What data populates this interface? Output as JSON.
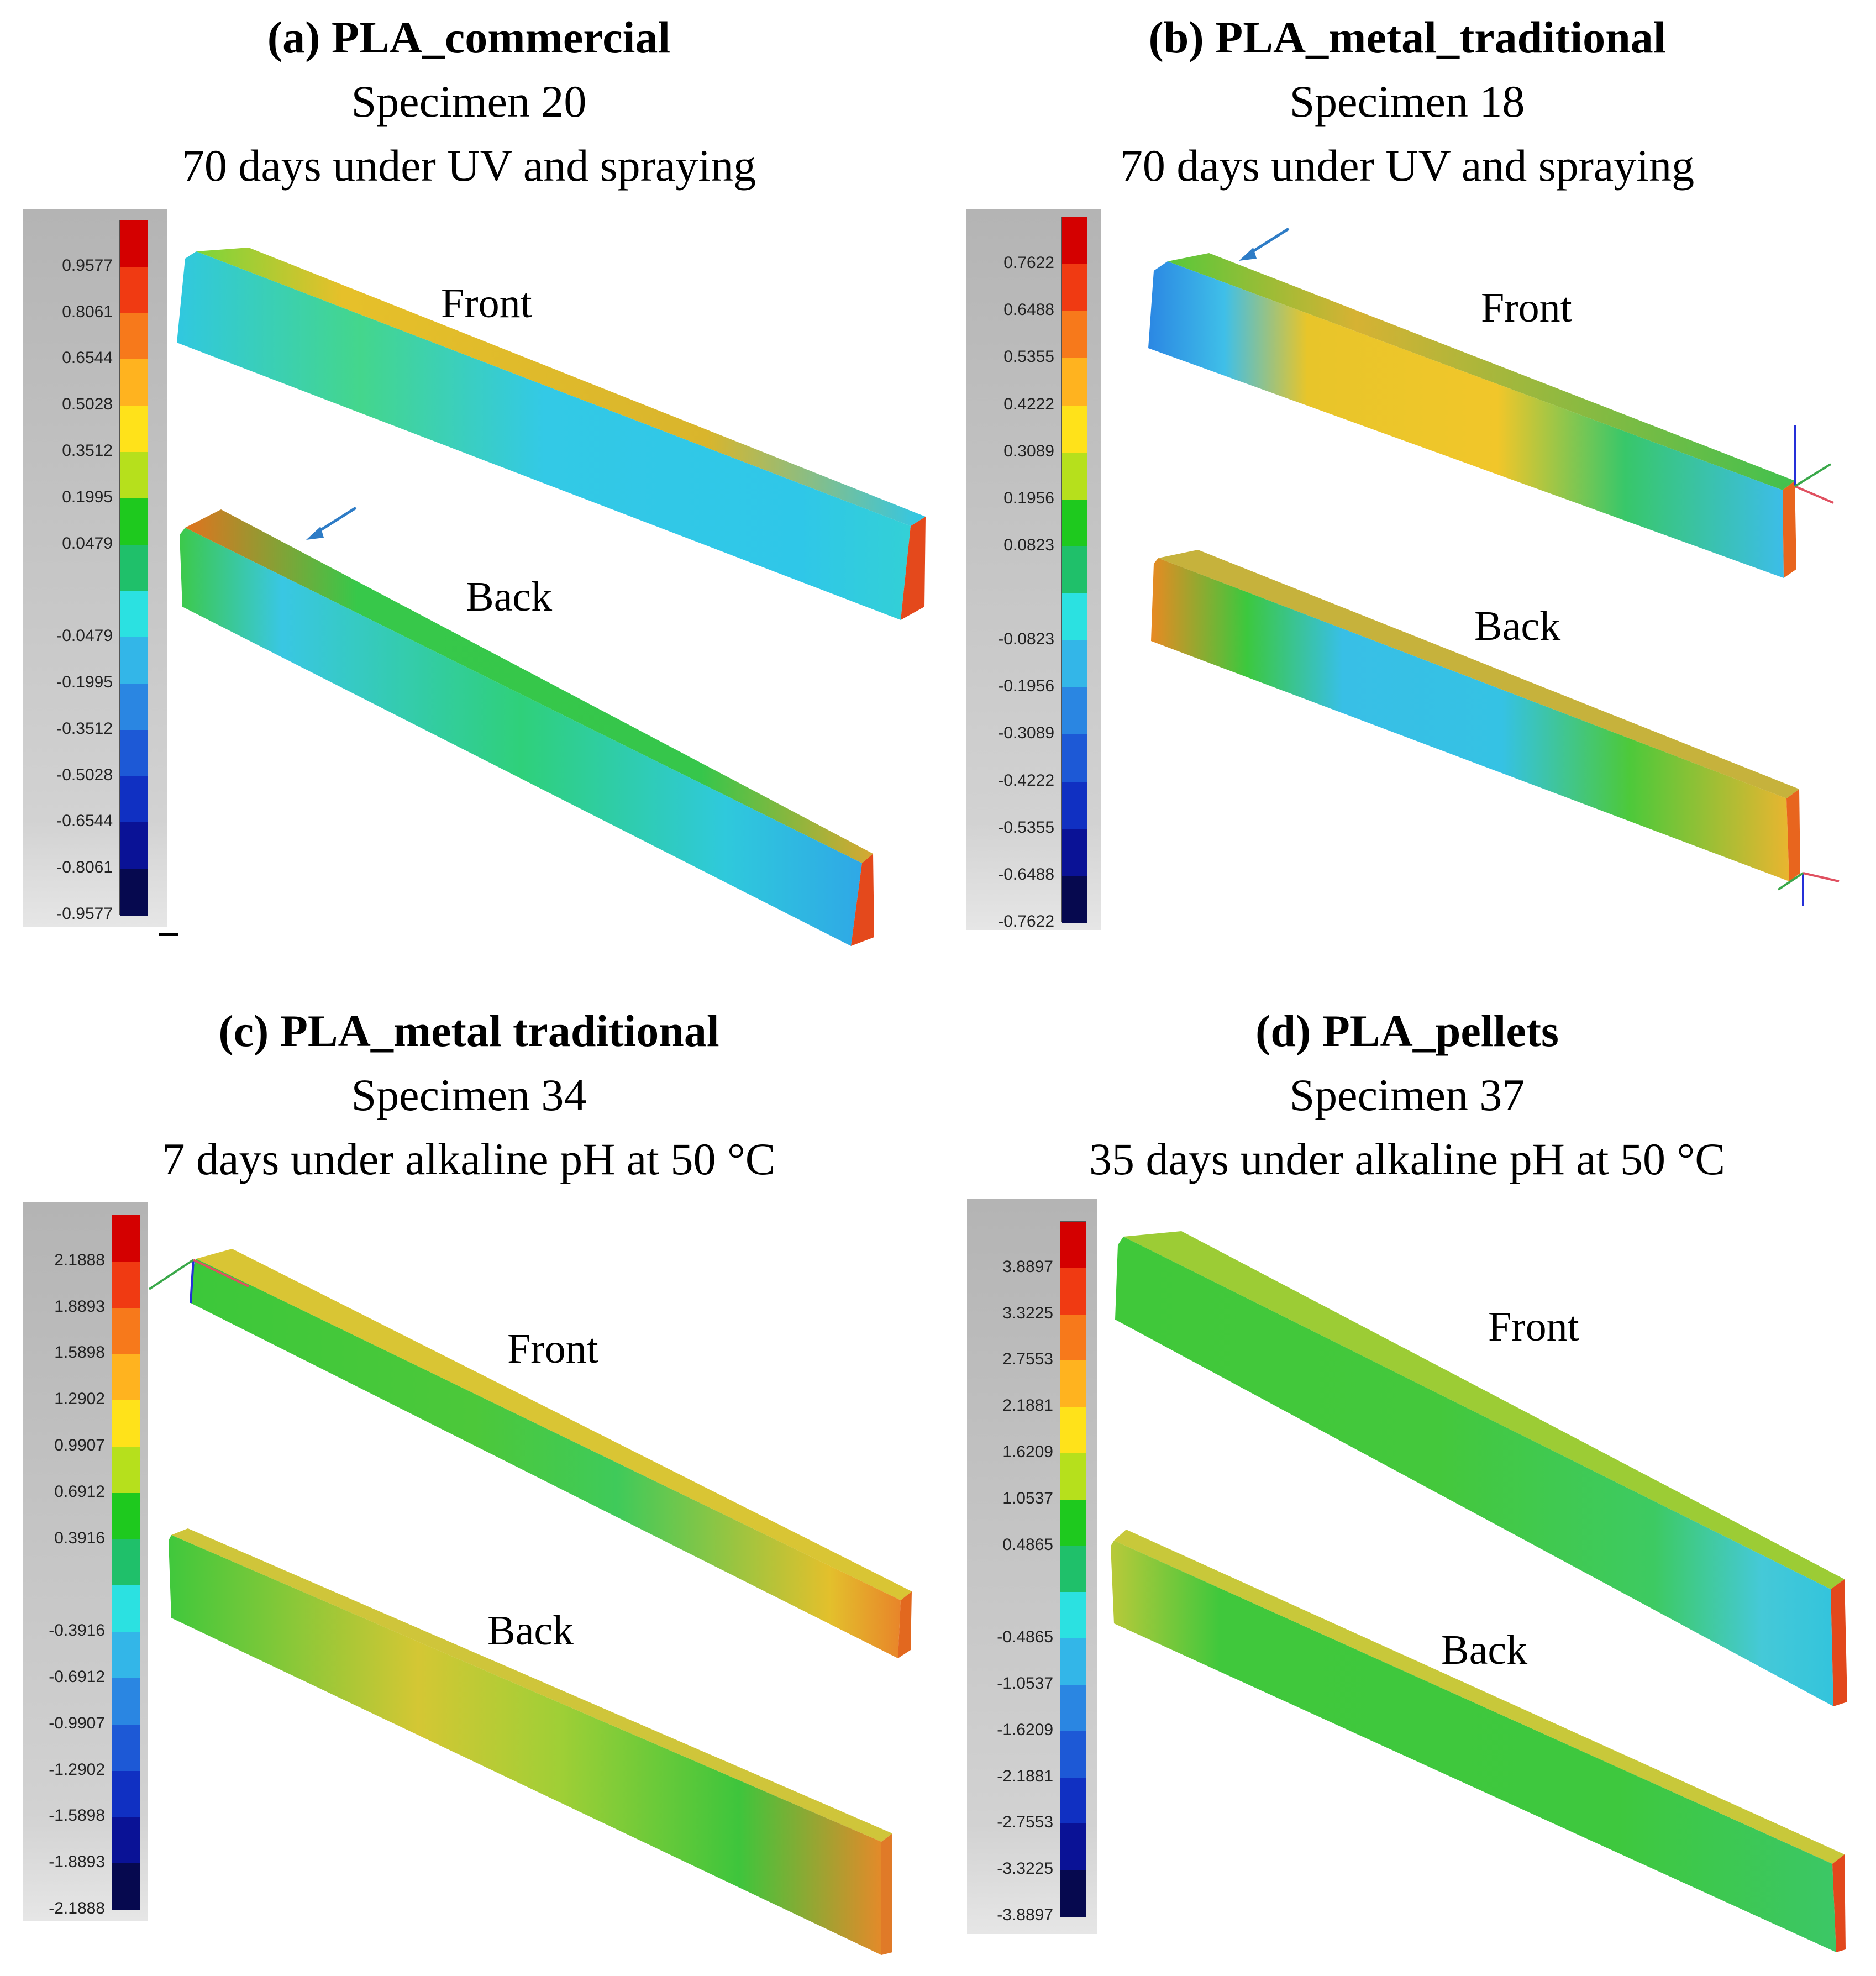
{
  "panels": {
    "a": {
      "title": "(a) PLA_commercial",
      "specimen": "Specimen 20",
      "condition": "70 days under UV and spraying",
      "front_label": "Front",
      "back_label": "Back",
      "scale_ticks": [
        "0.9577",
        "0.8061",
        "0.6544",
        "0.5028",
        "0.3512",
        "0.1995",
        "0.0479",
        "-0.0479",
        "-0.1995",
        "-0.3512",
        "-0.5028",
        "-0.6544",
        "-0.8061",
        "-0.9577"
      ]
    },
    "b": {
      "title": "(b) PLA_metal_traditional",
      "specimen": "Specimen 18",
      "condition": "70 days under UV and spraying",
      "front_label": "Front",
      "back_label": "Back",
      "scale_ticks": [
        "0.7622",
        "0.6488",
        "0.5355",
        "0.4222",
        "0.3089",
        "0.1956",
        "0.0823",
        "-0.0823",
        "-0.1956",
        "-0.3089",
        "-0.4222",
        "-0.5355",
        "-0.6488",
        "-0.7622"
      ]
    },
    "c": {
      "title": "(c) PLA_metal traditional",
      "specimen": "Specimen 34",
      "condition": "7 days under alkaline pH at 50 °C",
      "front_label": "Front",
      "back_label": "Back",
      "scale_ticks": [
        "2.1888",
        "1.8893",
        "1.5898",
        "1.2902",
        "0.9907",
        "0.6912",
        "0.3916",
        "-0.3916",
        "-0.6912",
        "-0.9907",
        "-1.2902",
        "-1.5898",
        "-1.8893",
        "-2.1888"
      ]
    },
    "d": {
      "title": "(d) PLA_pellets",
      "specimen": "Specimen 37",
      "condition": "35 days under alkaline pH at 50 °C",
      "front_label": "Front",
      "back_label": "Back",
      "scale_ticks": [
        "3.8897",
        "3.3225",
        "2.7553",
        "2.1881",
        "1.6209",
        "1.0537",
        "0.4865",
        "-0.4865",
        "-1.0537",
        "-1.6209",
        "-2.1881",
        "-2.7553",
        "-3.3225",
        "-3.8897"
      ]
    }
  },
  "colors": {
    "arrow": "#2e7cc6",
    "deviation_scale": [
      "#d40000",
      "#f03a12",
      "#f7791b",
      "#ffb31f",
      "#ffe21a",
      "#b6e01c",
      "#1ec91e",
      "#1fc06a",
      "#2be1e1",
      "#33b6e8",
      "#2a86e2",
      "#1d59d6",
      "#1030c2",
      "#0a1296",
      "#06094f"
    ]
  }
}
